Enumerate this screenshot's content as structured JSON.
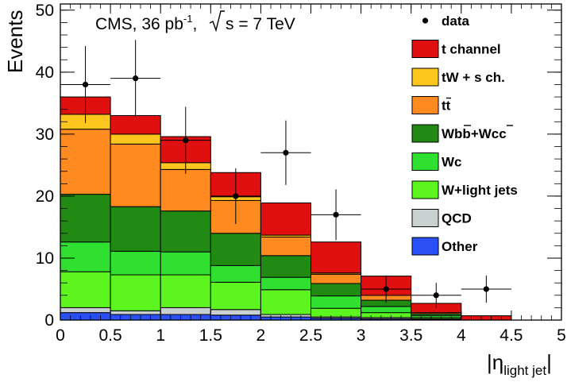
{
  "chart_data": {
    "type": "stacked-histogram",
    "title": "CMS, 36 pb",
    "title_superscript": "-1",
    "title_suffix": ", ",
    "title_energy": "s = 7 TeV",
    "ylabel": "Events",
    "xlabel_prefix": "|η",
    "xlabel_subscript": "light jet",
    "xlabel_suffix": "|",
    "xlim": [
      0,
      5
    ],
    "ylim": [
      0,
      51
    ],
    "xticks": [
      0,
      0.5,
      1,
      1.5,
      2,
      2.5,
      3,
      3.5,
      4,
      4.5,
      5
    ],
    "xtick_labels": [
      "0",
      "0.5",
      "1",
      "1.5",
      "2",
      "2.5",
      "3",
      "3.5",
      "4",
      "4.5",
      "5"
    ],
    "yticks": [
      0,
      10,
      20,
      30,
      40,
      50
    ],
    "ytick_labels": [
      "0",
      "10",
      "20",
      "30",
      "40",
      "50"
    ],
    "bin_edges": [
      0,
      0.5,
      1,
      1.5,
      2,
      2.5,
      3,
      3.5,
      4,
      4.5
    ],
    "series": [
      {
        "name": "Other",
        "legend": "Other",
        "color": "#2a4ff5",
        "values": [
          1.2,
          0.9,
          0.9,
          0.8,
          0.5,
          0.3,
          0.2,
          0.1,
          0.0
        ]
      },
      {
        "name": "QCD",
        "legend": "QCD",
        "color": "#c8d0d0",
        "values": [
          0.8,
          0.6,
          1.1,
          0.9,
          0.4,
          0.2,
          0.2,
          0.1,
          0.0
        ]
      },
      {
        "name": "W+light jets",
        "legend": "W+light jets",
        "color": "#5cf520",
        "values": [
          5.8,
          5.8,
          5.3,
          4.4,
          4.0,
          1.4,
          0.8,
          0.2,
          0.0
        ]
      },
      {
        "name": "Wc",
        "legend": "Wc",
        "color": "#30e030",
        "values": [
          4.8,
          3.8,
          3.7,
          2.7,
          2.0,
          2.0,
          1.0,
          0.3,
          0.0
        ]
      },
      {
        "name": "Wbb+Wcc",
        "legend": "Wbb+Wcc",
        "color": "#218a12",
        "values": [
          7.7,
          7.2,
          6.6,
          5.2,
          3.5,
          2.0,
          1.0,
          0.3,
          0.0
        ]
      },
      {
        "name": "ttbar",
        "legend": "tt",
        "color": "#ff8a20",
        "values": [
          10.5,
          10.1,
          6.7,
          5.3,
          3.0,
          1.5,
          0.8,
          0.2,
          0.0
        ]
      },
      {
        "name": "tW + s ch.",
        "legend": "tW + s ch.",
        "color": "#ffc61e",
        "values": [
          2.4,
          1.6,
          1.1,
          0.6,
          0.3,
          0.2,
          0.0,
          0.0,
          0.0
        ]
      },
      {
        "name": "t channel",
        "legend": "t channel",
        "color": "#e01010",
        "values": [
          2.8,
          3.0,
          4.2,
          3.9,
          5.2,
          5.0,
          3.1,
          1.5,
          0.7
        ]
      }
    ],
    "data_points": {
      "name": "data",
      "legend": "data",
      "x": [
        0.25,
        0.75,
        1.25,
        1.75,
        2.25,
        2.75,
        3.25,
        3.75,
        4.25
      ],
      "y": [
        38,
        39,
        29,
        20,
        27,
        17,
        5,
        4,
        5
      ],
      "err_low": [
        6.2,
        6.2,
        5.4,
        4.5,
        5.2,
        4.1,
        2.2,
        2.0,
        2.2
      ],
      "err_high": [
        6.2,
        6.2,
        5.4,
        4.5,
        5.2,
        4.1,
        2.2,
        2.0,
        2.2
      ]
    },
    "legend_order": [
      "data",
      "t channel",
      "tW + s ch.",
      "ttbar",
      "Wbb+Wcc",
      "Wc",
      "W+light jets",
      "QCD",
      "Other"
    ],
    "legend_position": "top-right"
  }
}
